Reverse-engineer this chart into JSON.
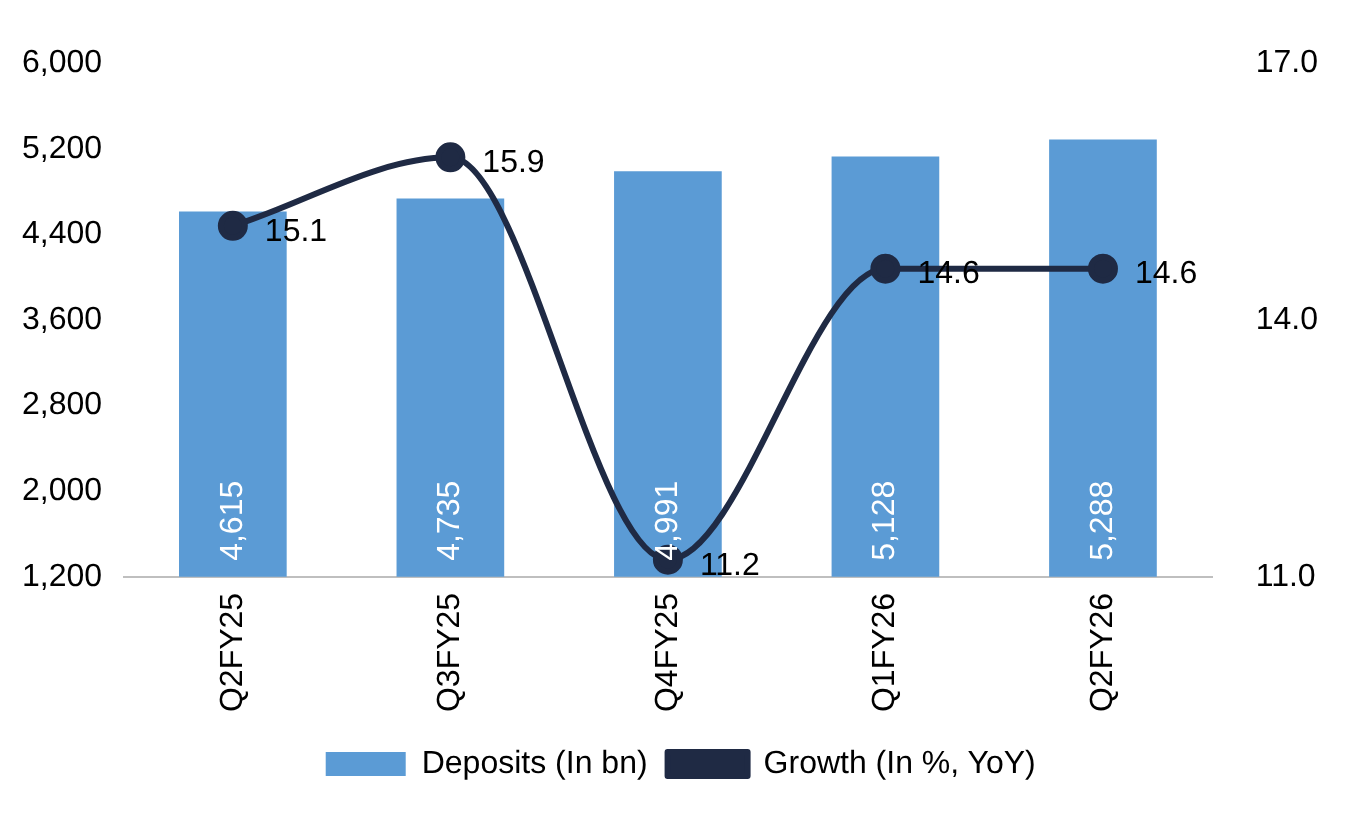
{
  "chart_data": {
    "type": "bar",
    "categories": [
      "Q2FY25",
      "Q3FY25",
      "Q4FY25",
      "Q1FY26",
      "Q2FY26"
    ],
    "series": [
      {
        "name": "Deposits (In bn)",
        "color": "#5b9bd5",
        "values": [
          4615,
          4735,
          4991,
          5128,
          5288
        ],
        "value_labels": [
          "4,615",
          "4,735",
          "4,991",
          "5,128",
          "5,288"
        ]
      },
      {
        "name": "Growth (In %, YoY)",
        "type": "line",
        "axis": "y2",
        "color": "#1f2a44",
        "values": [
          15.1,
          15.9,
          11.2,
          14.6,
          14.6
        ],
        "value_labels": [
          "15.1",
          "15.9",
          "11.2",
          "14.6",
          "14.6"
        ]
      }
    ],
    "ylim": [
      1200,
      6000
    ],
    "yticks": [
      {
        "value": 1200,
        "label": "1,200"
      },
      {
        "value": 2000,
        "label": "2,000"
      },
      {
        "value": 2800,
        "label": "2,800"
      },
      {
        "value": 3600,
        "label": "3,600"
      },
      {
        "value": 4400,
        "label": "4,400"
      },
      {
        "value": 5200,
        "label": "5,200"
      },
      {
        "value": 6000,
        "label": "6,000"
      }
    ],
    "y2lim": [
      11,
      17
    ],
    "y2ticks": [
      {
        "value": 11,
        "label": "11.0"
      },
      {
        "value": 14,
        "label": "14.0"
      },
      {
        "value": 17,
        "label": "17.0"
      }
    ],
    "legend": "bottom",
    "grid": false,
    "marker": "circle",
    "line_style": "solid"
  }
}
